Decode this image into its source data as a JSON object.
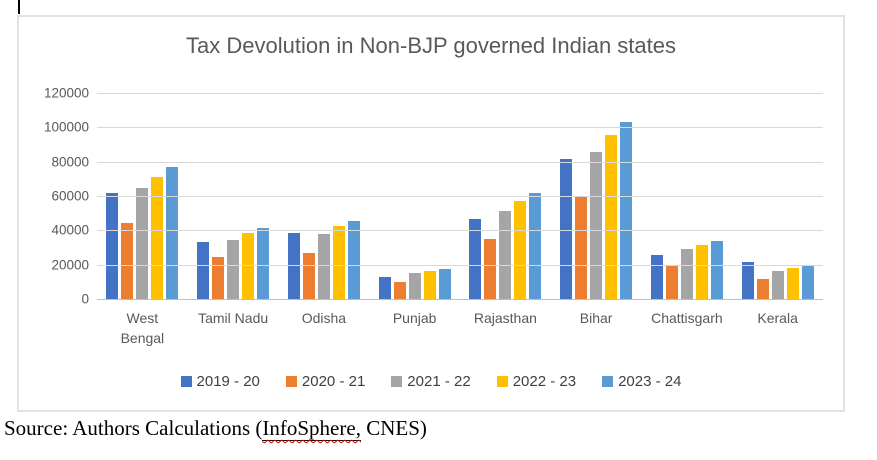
{
  "document": {
    "source_prefix": "Source: Authors Calculations (",
    "source_underlined": "InfoSphere,",
    "source_suffix": " CNES)"
  },
  "chart_data": {
    "type": "bar",
    "title": "Tax Devolution in Non-BJP governed Indian states",
    "categories": [
      "West\nBengal",
      "Tamil Nadu",
      "Odisha",
      "Punjab",
      "Rajasthan",
      "Bihar",
      "Chattisgarh",
      "Kerala"
    ],
    "series": [
      {
        "name": "2019 - 20",
        "color": "#4472C4",
        "values": [
          62000,
          33500,
          38500,
          13000,
          46500,
          81500,
          25500,
          21500
        ]
      },
      {
        "name": "2020 - 21",
        "color": "#ED7D31",
        "values": [
          44500,
          24500,
          27000,
          10000,
          35000,
          60000,
          19500,
          11500
        ]
      },
      {
        "name": "2021 - 22",
        "color": "#A5A5A5",
        "values": [
          64500,
          34500,
          38000,
          15000,
          51000,
          85500,
          29000,
          16500
        ]
      },
      {
        "name": "2022 - 23",
        "color": "#FFC000",
        "values": [
          71000,
          38500,
          42500,
          16500,
          57000,
          95500,
          31500,
          18000
        ]
      },
      {
        "name": "2023 - 24",
        "color": "#5B9BD5",
        "values": [
          77000,
          41500,
          45500,
          17500,
          61500,
          103000,
          34000,
          19500
        ]
      }
    ],
    "xlabel": "",
    "ylabel": "",
    "ylim": [
      0,
      120000
    ],
    "yticks": [
      0,
      20000,
      40000,
      60000,
      80000,
      100000,
      120000
    ],
    "grid": true,
    "legend_position": "bottom",
    "styles": {
      "gridline_color": "#d9d9d9",
      "axis_line_color": "#bfbfbf",
      "title_color": "#595959",
      "tick_label_color": "#595959",
      "frame_border_color": "#e2e2e2"
    }
  }
}
